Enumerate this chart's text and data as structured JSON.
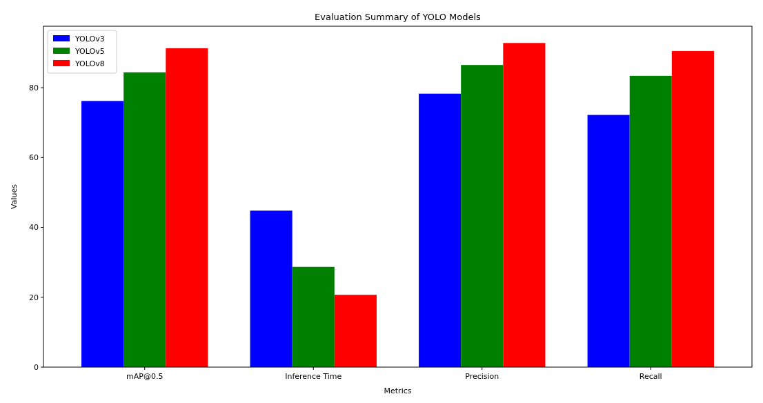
{
  "chart_data": {
    "type": "bar",
    "title": "Evaluation Summary of YOLO Models",
    "xlabel": "Metrics",
    "ylabel": "Values",
    "categories": [
      "mAP@0.5",
      "Inference Time",
      "Precision",
      "Recall"
    ],
    "series": [
      {
        "name": "YOLOv3",
        "color": "#0000ff",
        "values": [
          76.2,
          44.8,
          78.3,
          72.2
        ]
      },
      {
        "name": "YOLOv5",
        "color": "#008000",
        "values": [
          84.4,
          28.7,
          86.5,
          83.4
        ]
      },
      {
        "name": "YOLOv8",
        "color": "#ff0000",
        "values": [
          91.3,
          20.7,
          92.8,
          90.5
        ]
      }
    ],
    "ylim": [
      0,
      97.6
    ],
    "yticks": [
      0,
      20,
      40,
      60,
      80
    ],
    "grid": false,
    "legend": "top left"
  }
}
